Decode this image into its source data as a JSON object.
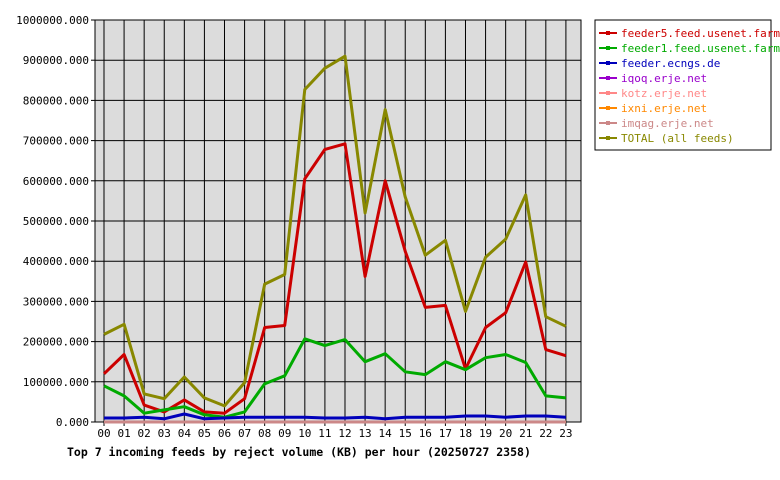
{
  "chart_data": {
    "type": "line",
    "caption": "Top 7 incoming feeds by reject volume (KB) per hour (20250727 2358)",
    "x": [
      "00",
      "01",
      "02",
      "03",
      "04",
      "05",
      "06",
      "07",
      "08",
      "09",
      "10",
      "11",
      "12",
      "13",
      "14",
      "15",
      "16",
      "17",
      "18",
      "19",
      "20",
      "21",
      "22",
      "23"
    ],
    "ylim": [
      0,
      1000000
    ],
    "yticks": [
      "0.000",
      "100000.000",
      "200000.000",
      "300000.000",
      "400000.000",
      "500000.000",
      "600000.000",
      "700000.000",
      "800000.000",
      "900000.000",
      "1000000.000"
    ],
    "grid": true,
    "legend_position": "right",
    "series": [
      {
        "name": "feeder5.feed.usenet.farm",
        "color": "#cc0000",
        "values": [
          120000,
          168000,
          42000,
          25000,
          55000,
          25000,
          22000,
          58000,
          235000,
          240000,
          605000,
          678000,
          692000,
          362000,
          600000,
          425000,
          285000,
          290000,
          132000,
          235000,
          272000,
          398000,
          180000,
          165000
        ]
      },
      {
        "name": "feeder1.feed.usenet.farm",
        "color": "#00aa00",
        "values": [
          90000,
          65000,
          22000,
          30000,
          38000,
          18000,
          12000,
          25000,
          95000,
          115000,
          207000,
          190000,
          205000,
          150000,
          170000,
          125000,
          118000,
          150000,
          130000,
          160000,
          168000,
          148000,
          65000,
          60000
        ]
      },
      {
        "name": "feeder.ecngs.de",
        "color": "#0000bb",
        "values": [
          10000,
          10000,
          12000,
          8000,
          20000,
          8000,
          10000,
          12000,
          12000,
          12000,
          12000,
          10000,
          10000,
          12000,
          8000,
          12000,
          12000,
          12000,
          15000,
          15000,
          12000,
          15000,
          15000,
          12000
        ]
      },
      {
        "name": "iqoq.erje.net",
        "color": "#9900cc",
        "values": [
          0,
          0,
          0,
          0,
          0,
          0,
          0,
          0,
          0,
          0,
          0,
          0,
          0,
          0,
          0,
          0,
          0,
          0,
          0,
          0,
          0,
          0,
          0,
          0
        ]
      },
      {
        "name": "kotz.erje.net",
        "color": "#ff8888",
        "values": [
          0,
          0,
          0,
          0,
          0,
          0,
          0,
          0,
          0,
          0,
          0,
          0,
          0,
          0,
          0,
          0,
          0,
          0,
          0,
          0,
          0,
          0,
          0,
          0
        ]
      },
      {
        "name": "ixni.erje.net",
        "color": "#ff8800",
        "values": [
          0,
          0,
          0,
          0,
          0,
          0,
          0,
          0,
          0,
          0,
          0,
          0,
          0,
          0,
          0,
          0,
          0,
          0,
          0,
          0,
          0,
          0,
          0,
          0
        ]
      },
      {
        "name": "imqag.erje.net",
        "color": "#cc8888",
        "values": [
          0,
          0,
          0,
          0,
          0,
          0,
          0,
          0,
          0,
          0,
          0,
          0,
          0,
          0,
          0,
          0,
          0,
          0,
          0,
          0,
          0,
          0,
          0,
          0
        ]
      },
      {
        "name": "TOTAL (all feeds)",
        "color": "#888800",
        "values": [
          218000,
          243000,
          70000,
          58000,
          112000,
          60000,
          40000,
          98000,
          343000,
          367000,
          827000,
          880000,
          910000,
          520000,
          777000,
          560000,
          415000,
          452000,
          275000,
          410000,
          455000,
          565000,
          262000,
          238000
        ]
      }
    ]
  }
}
